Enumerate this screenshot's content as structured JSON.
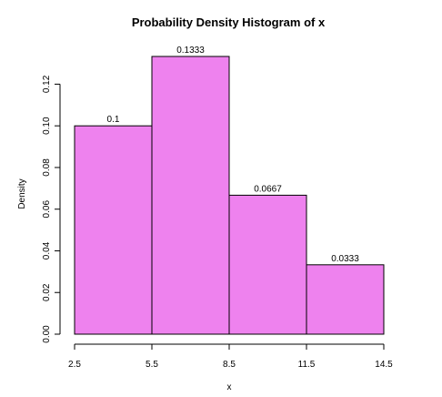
{
  "chart_data": {
    "type": "bar",
    "title": "Probability Density Histogram of x",
    "xlabel": "x",
    "ylabel": "Density",
    "bins": [
      {
        "start": 2.5,
        "end": 5.5,
        "value": 0.1,
        "label": "0.1"
      },
      {
        "start": 5.5,
        "end": 8.5,
        "value": 0.1333,
        "label": "0.1333"
      },
      {
        "start": 8.5,
        "end": 11.5,
        "value": 0.0667,
        "label": "0.0667"
      },
      {
        "start": 11.5,
        "end": 14.5,
        "value": 0.0333,
        "label": "0.0333"
      }
    ],
    "x_ticks": [
      "2.5",
      "5.5",
      "8.5",
      "11.5",
      "14.5"
    ],
    "y_ticks": [
      "0.00",
      "0.02",
      "0.04",
      "0.06",
      "0.08",
      "0.10",
      "0.12"
    ],
    "xlim": [
      2.5,
      14.5
    ],
    "ylim": [
      0,
      0.1333
    ],
    "bar_fill": "#ee82ee",
    "bar_stroke": "#000000",
    "grid": false,
    "legend": "none"
  }
}
